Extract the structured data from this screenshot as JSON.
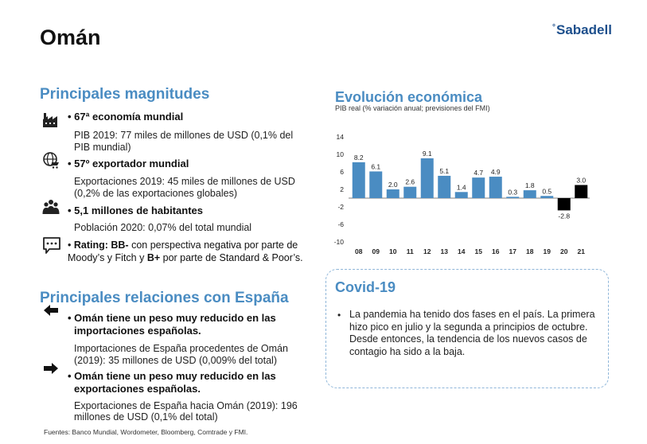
{
  "page": {
    "title": "Omán",
    "logo": "Sabadell",
    "logo_mark": "°"
  },
  "magnitudes": {
    "title": "Principales magnitudes",
    "items": [
      {
        "icon": "factory-icon",
        "head": "• 67ª economía mundial",
        "text1": "PIB 2019: 77 miles de millones de USD (0,1% del",
        "text2": "PIB mundial)"
      },
      {
        "icon": "globe-cart-icon",
        "head": "• 57º exportador mundial",
        "text1": "Exportaciones 2019: 45 miles de millones de USD",
        "text2": "(0,2% de las exportaciones globales)"
      },
      {
        "icon": "people-icon",
        "head": "• 5,1 millones de habitantes",
        "text1": "Población 2020: 0,07% del total mundial"
      }
    ],
    "rating": {
      "icon": "chat-icon",
      "prefix": "• ",
      "label": "Rating: BB-",
      "mid": " con perspectiva negativa por parte de Moody’s y Fitch y ",
      "bplus": "B+",
      "suffix": " por parte de Standard & Poor’s."
    }
  },
  "relaciones": {
    "title": "Principales relaciones con España",
    "items": [
      {
        "icon": "arrow-left-icon",
        "head1": "• Omán tiene un peso muy reducido en las",
        "head2": "importaciones españolas.",
        "text1": "Importaciones de España procedentes de Omán",
        "text2": "(2019): 35 millones de USD (0,009% del total)"
      },
      {
        "icon": "arrow-right-icon",
        "head1": "• Omán tiene un peso muy reducido en las",
        "head2": "exportaciones españolas.",
        "text1": "Exportaciones de España hacia Omán (2019): 196",
        "text2": "millones de USD (0,1% del total)"
      }
    ]
  },
  "chart": {
    "title": "Evolución económica",
    "subtitle": "PIB real (% variación anual; previsiones del FMI)"
  },
  "chart_data": {
    "type": "bar",
    "title": "Evolución económica",
    "subtitle": "PIB real (% variación anual; previsiones del FMI)",
    "categories": [
      "08",
      "09",
      "10",
      "11",
      "12",
      "13",
      "14",
      "15",
      "16",
      "17",
      "18",
      "19",
      "20",
      "21"
    ],
    "values": [
      8.2,
      6.1,
      2.0,
      2.6,
      9.1,
      5.1,
      1.4,
      4.7,
      4.9,
      0.3,
      1.8,
      0.5,
      -2.8,
      3.0
    ],
    "labels": [
      "8.2",
      "6.1",
      "2.0",
      "2.6",
      "9.1",
      "5.1",
      "1.4",
      "4.7",
      "4.9",
      "0.3",
      "1.8",
      "0.5",
      "-2.8",
      "3.0"
    ],
    "forecast_categories": [
      "20",
      "21"
    ],
    "yticks": [
      14,
      10,
      6,
      2,
      -2,
      -6,
      -10
    ],
    "ylim": [
      -10,
      14
    ],
    "grid": false,
    "colors": {
      "actual": "#4a8cc2",
      "forecast": "#000000"
    }
  },
  "covid": {
    "title": "Covid-19",
    "bullet": "•",
    "text": "La pandemia ha tenido dos fases en el país. La primera hizo pico en julio y la segunda a principios de octubre. Desde entonces, la tendencia de los nuevos casos de contagio ha sido a la baja."
  },
  "footer": "Fuentes: Banco Mundial, Wordometer, Bloomberg, Comtrade y FMI."
}
